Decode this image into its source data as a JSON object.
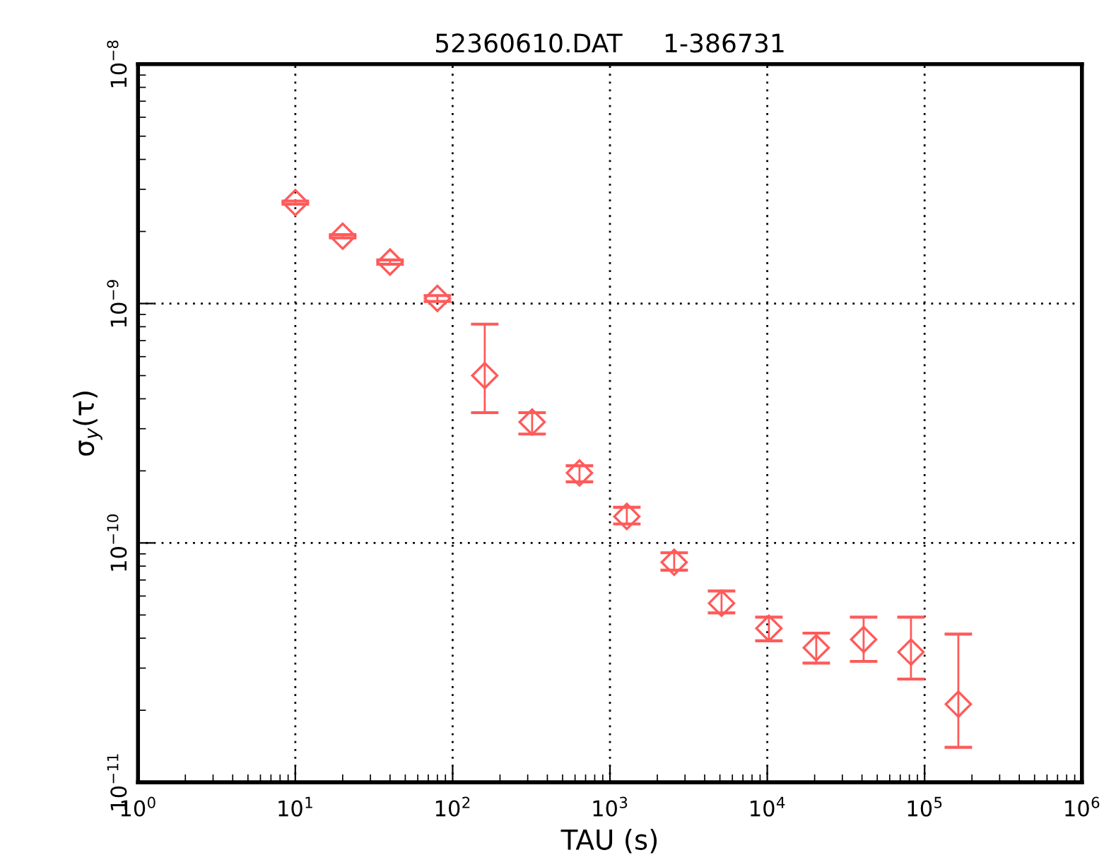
{
  "chart_data": {
    "type": "scatter",
    "title": "52360610.DAT     1-386731",
    "xlabel": "TAU (s)",
    "ylabel": "σ$_{y}$(τ)",
    "log": "xy",
    "grid": true,
    "marker": "diamond",
    "xlim": [
      1,
      1000000
    ],
    "ylim": [
      1e-11,
      1e-08
    ],
    "xticks": [
      {
        "value": 1,
        "label": "10$^{0}$"
      },
      {
        "value": 10,
        "label": "10$^{1}$"
      },
      {
        "value": 100,
        "label": "10$^{2}$"
      },
      {
        "value": 1000,
        "label": "10$^{3}$"
      },
      {
        "value": 10000,
        "label": "10$^{4}$"
      },
      {
        "value": 100000,
        "label": "10$^{5}$"
      },
      {
        "value": 1000000,
        "label": "10$^{6}$"
      }
    ],
    "yticks": [
      {
        "value": 1e-11,
        "label": "10$^{−11}$"
      },
      {
        "value": 1e-10,
        "label": "10$^{−10}$"
      },
      {
        "value": 1e-09,
        "label": "10$^{−9}$"
      },
      {
        "value": 1e-08,
        "label": "10$^{−8}$"
      }
    ],
    "series": [
      {
        "color": "#ff5a5a",
        "x": [
          10,
          20,
          40,
          80,
          160,
          320,
          640,
          1280,
          2560,
          5120,
          10240,
          20480,
          40960,
          81920,
          163840
        ],
        "values": [
          2.64e-09,
          1.91e-09,
          1.49e-09,
          1.05e-09,
          5e-10,
          3.2e-10,
          1.96e-10,
          1.29e-10,
          8.3e-11,
          5.6e-11,
          4.4e-11,
          3.65e-11,
          3.95e-11,
          3.5e-11,
          2.12e-11
        ],
        "errors": [
          [
            2.6e-09,
            2.68e-09
          ],
          [
            1.88e-09,
            1.94e-09
          ],
          [
            1.46e-09,
            1.52e-09
          ],
          [
            1.02e-09,
            1.08e-09
          ],
          [
            3.5e-10,
            8.2e-10
          ],
          [
            2.85e-10,
            3.5e-10
          ],
          [
            1.8e-10,
            2.1e-10
          ],
          [
            1.2e-10,
            1.41e-10
          ],
          [
            7.7e-11,
            9.1e-11
          ],
          [
            5.1e-11,
            6.3e-11
          ],
          [
            3.9e-11,
            4.9e-11
          ],
          [
            3.15e-11,
            4.2e-11
          ],
          [
            3.2e-11,
            4.9e-11
          ],
          [
            2.7e-11,
            4.9e-11
          ],
          [
            1.4e-11,
            4.16e-11
          ]
        ]
      }
    ]
  }
}
